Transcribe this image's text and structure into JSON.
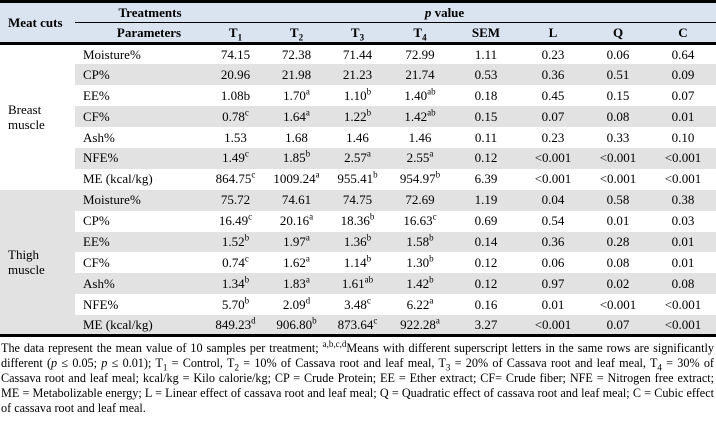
{
  "colors": {
    "header_bg": "#dae4f1",
    "row_stripe": "#e2e2e2",
    "rule": "#000000"
  },
  "table": {
    "header": {
      "meat_cuts": "Meat cuts",
      "treatments": "Treatments",
      "p_value_italic": "p",
      "p_value_rest": " value",
      "parameters": "Parameters",
      "columns": [
        "T~1",
        "T~2",
        "T~3",
        "T~4",
        "SEM",
        "L",
        "Q",
        "C"
      ]
    },
    "sections": [
      {
        "name": "Breast muscle",
        "rows": [
          {
            "parameter": "Moisture%",
            "values": [
              "74.15",
              "72.38",
              "71.44",
              "72.99",
              "1.11",
              "0.23",
              "0.06",
              "0.64"
            ]
          },
          {
            "parameter": "CP%",
            "values": [
              "20.96",
              "21.98",
              "21.23",
              "21.74",
              "0.53",
              "0.36",
              "0.51",
              "0.09"
            ]
          },
          {
            "parameter": "EE%",
            "values": [
              "1.08b",
              "1.70^a",
              "1.10^b",
              "1.40^ab",
              "0.18",
              "0.45",
              "0.15",
              "0.07"
            ]
          },
          {
            "parameter": "CF%",
            "values": [
              "0.78^c",
              "1.64^a",
              "1.22^b",
              "1.42^ab",
              "0.15",
              "0.07",
              "0.08",
              "0.01"
            ]
          },
          {
            "parameter": "Ash%",
            "values": [
              "1.53",
              "1.68",
              "1.46",
              "1.46",
              "0.11",
              "0.23",
              "0.33",
              "0.10"
            ]
          },
          {
            "parameter": "NFE%",
            "values": [
              "1.49^c",
              "1.85^b",
              "2.57^a",
              "2.55^a",
              "0.12",
              "<0.001",
              "<0.001",
              "<0.001"
            ]
          },
          {
            "parameter": "ME (kcal/kg)",
            "values": [
              "864.75^c",
              "1009.24^a",
              "955.41^b",
              "954.97^b",
              "6.39",
              "<0.001",
              "<0.001",
              "<0.001"
            ]
          }
        ]
      },
      {
        "name": "Thigh muscle",
        "rows": [
          {
            "parameter": "Moisture%",
            "values": [
              "75.72",
              "74.61",
              "74.75",
              "72.69",
              "1.19",
              "0.04",
              "0.58",
              "0.38"
            ]
          },
          {
            "parameter": "CP%",
            "values": [
              "16.49^c",
              "20.16^a",
              "18.36^b",
              "16.63^c",
              "0.69",
              "0.54",
              "0.01",
              "0.03"
            ]
          },
          {
            "parameter": "EE%",
            "values": [
              "1.52^b",
              "1.97^a",
              "1.36^b",
              "1.58^b",
              "0.14",
              "0.36",
              "0.28",
              "0.01"
            ]
          },
          {
            "parameter": "CF%",
            "values": [
              "0.74^c",
              "1.62^a",
              "1.14^b",
              "1.30^b",
              "0.12",
              "0.06",
              "0.08",
              "0.01"
            ]
          },
          {
            "parameter": "Ash%",
            "values": [
              "1.34^b",
              "1.83^a",
              "1.61^ab",
              "1.42^b",
              "0.12",
              "0.97",
              "0.02",
              "0.08"
            ]
          },
          {
            "parameter": "NFE%",
            "values": [
              "5.70^b",
              "2.09^d",
              "3.48^c",
              "6.22^a",
              "0.16",
              "0.01",
              "<0.001",
              "<0.001"
            ]
          },
          {
            "parameter": "ME (kcal/kg)",
            "values": [
              "849.23^d",
              "906.80^b",
              "873.64^c",
              "922.28^a",
              "3.27",
              "<0.001",
              "0.07",
              "<0.001"
            ]
          }
        ]
      }
    ]
  },
  "footnote_segments": [
    {
      "t": "The data represent the mean value of 10 samples per treatment; "
    },
    {
      "t": "a,b,c,d",
      "style": "sup"
    },
    {
      "t": "Means with different superscript letters in the same rows are significantly different ("
    },
    {
      "t": "p",
      "style": "i"
    },
    {
      "t": " ≤ 0.05; "
    },
    {
      "t": "p",
      "style": "i"
    },
    {
      "t": " ≤ 0.01); T"
    },
    {
      "t": "1",
      "style": "sub"
    },
    {
      "t": " = Control, T"
    },
    {
      "t": "2",
      "style": "sub"
    },
    {
      "t": " = 10% of Cassava root and leaf meal, T"
    },
    {
      "t": "3",
      "style": "sub"
    },
    {
      "t": " = 20% of Cassava root and leaf meal, T"
    },
    {
      "t": "4",
      "style": "sub"
    },
    {
      "t": " = 30% of Cassava root and leaf meal; kcal/kg = Kilo calorie/kg; CP = Crude Protein; EE = Ether extract; CF= Crude fiber; NFE = Nitrogen free extract; ME = Metabolizable energy; L = Linear effect of cassava root and leaf meal; Q = Quadratic effect of cassava root and leaf meal; C = Cubic effect of cassava root and leaf meal."
    }
  ]
}
